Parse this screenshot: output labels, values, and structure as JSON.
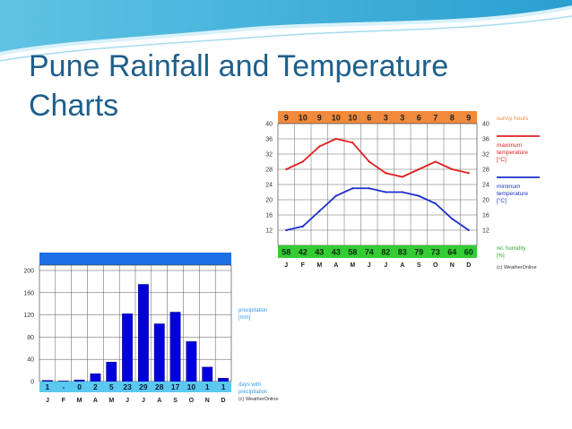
{
  "slide": {
    "title": "Pune Rainfall and Temperature Charts"
  },
  "colors": {
    "title": "#1f5f8b",
    "bar": "#0000dd",
    "header_blue": "#1e6fe6",
    "days_band": "#5bc8f0",
    "sun_band": "#f08a3c",
    "humidity_band": "#33cc33",
    "max_line": "#e02020",
    "min_line": "#1a2fcc",
    "legend_blue": "#3399ee",
    "legend_orange": "#f08a3c",
    "legend_green": "#33aa33"
  },
  "chart_data": [
    {
      "type": "bar",
      "categories": [
        "J",
        "F",
        "M",
        "A",
        "M",
        "J",
        "J",
        "A",
        "S",
        "O",
        "N",
        "D"
      ],
      "values": [
        2,
        1,
        3,
        14,
        35,
        122,
        175,
        104,
        125,
        72,
        26,
        6
      ],
      "ylim": [
        0,
        200
      ],
      "yticks": [
        "0",
        "40",
        "80",
        "120",
        "160",
        "200"
      ],
      "days_with_precipitation": [
        "1",
        "-",
        "0",
        "2",
        "5",
        "23",
        "29",
        "28",
        "17",
        "10",
        "1",
        "1"
      ],
      "legend_precip": [
        "precipitation",
        "[mm]"
      ],
      "legend_days": [
        "days with",
        "precipitation"
      ],
      "credit": "(c) WeatherOnline",
      "grid": true
    },
    {
      "type": "line",
      "categories": [
        "J",
        "F",
        "M",
        "A",
        "M",
        "J",
        "J",
        "A",
        "S",
        "O",
        "N",
        "D"
      ],
      "series": [
        {
          "name": "maximum temperature [°C]",
          "values": [
            28,
            30,
            34,
            36,
            35,
            30,
            27,
            26,
            28,
            30,
            28,
            27
          ]
        },
        {
          "name": "minimum temperature [°C]",
          "values": [
            12,
            13,
            17,
            21,
            23,
            23,
            22,
            22,
            21,
            19,
            15,
            12
          ]
        }
      ],
      "ylim": [
        8,
        40
      ],
      "yticks": [
        "12",
        "16",
        "20",
        "24",
        "28",
        "32",
        "36",
        "40"
      ],
      "sunny_hours": [
        "9",
        "10",
        "9",
        "10",
        "10",
        "6",
        "3",
        "3",
        "6",
        "7",
        "8",
        "9"
      ],
      "humidity": [
        "58",
        "42",
        "43",
        "43",
        "58",
        "74",
        "82",
        "83",
        "79",
        "73",
        "64",
        "60"
      ],
      "legend_sunny": "sunny hours",
      "legend_max": [
        "maximum",
        "temperature",
        "[°C]"
      ],
      "legend_min": [
        "minimum",
        "temperature",
        "[°C]"
      ],
      "legend_humidity": [
        "rel. humidity",
        "[%]"
      ],
      "credit": "(c) WeatherOnline",
      "grid": true
    }
  ]
}
